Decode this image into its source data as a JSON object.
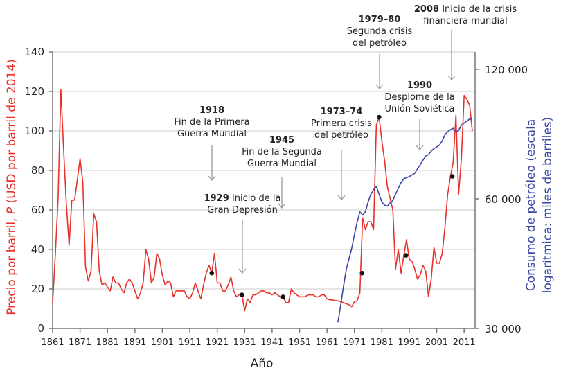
{
  "chart_data": {
    "type": "line",
    "title": "",
    "xlabel": "Año",
    "ylabel_left": "Precio por barril, P (USD por barril de 2014)",
    "ylabel_right": [
      "Consumo de petróleo (escala",
      "logarítmica: miles de barriles)"
    ],
    "x_ticks": [
      "1861",
      "1871",
      "1881",
      "1891",
      "1901",
      "1911",
      "1921",
      "1931",
      "1941",
      "1951",
      "1961",
      "1971",
      "1981",
      "1991",
      "2001",
      "2011"
    ],
    "xlim": [
      1861,
      2015
    ],
    "y_left_ticks": [
      "0",
      "20",
      "40",
      "60",
      "80",
      "100",
      "120",
      "140"
    ],
    "ylim_left": [
      0,
      140
    ],
    "y_right_ticks": [
      "30 000",
      "60 000",
      "120 000"
    ],
    "y_right_scale": "log",
    "ylim_right": [
      30000,
      120000
    ],
    "grid": "horizontal",
    "colors": {
      "price": "#e8302a",
      "consumption": "#3a46a6",
      "grid": "#dddddd",
      "arrow": "#999999",
      "marker": "#111111"
    },
    "series": [
      {
        "axis": "left",
        "x": [
          1861,
          1862,
          1863,
          1864,
          1865,
          1866,
          1867,
          1868,
          1869,
          1870,
          1871,
          1872,
          1873,
          1874,
          1875,
          1876,
          1877,
          1878,
          1879,
          1880,
          1881,
          1882,
          1883,
          1884,
          1885,
          1886,
          1887,
          1888,
          1889,
          1890,
          1891,
          1892,
          1893,
          1894,
          1895,
          1896,
          1897,
          1898,
          1899,
          1900,
          1901,
          1902,
          1903,
          1904,
          1905,
          1906,
          1907,
          1908,
          1909,
          1910,
          1911,
          1912,
          1913,
          1914,
          1915,
          1916,
          1917,
          1918,
          1919,
          1920,
          1921,
          1922,
          1923,
          1924,
          1925,
          1926,
          1927,
          1928,
          1929,
          1930,
          1931,
          1932,
          1933,
          1934,
          1935,
          1936,
          1937,
          1938,
          1939,
          1940,
          1941,
          1942,
          1943,
          1944,
          1945,
          1946,
          1947,
          1948,
          1949,
          1950,
          1951,
          1952,
          1953,
          1954,
          1955,
          1956,
          1957,
          1958,
          1959,
          1960,
          1961,
          1962,
          1963,
          1964,
          1965,
          1966,
          1967,
          1968,
          1969,
          1970,
          1971,
          1972,
          1973,
          1974,
          1975,
          1976,
          1977,
          1978,
          1979,
          1980,
          1981,
          1982,
          1983,
          1984,
          1985,
          1986,
          1987,
          1988,
          1989,
          1990,
          1991,
          1992,
          1993,
          1994,
          1995,
          1996,
          1997,
          1998,
          1999,
          2000,
          2001,
          2002,
          2003,
          2004,
          2005,
          2006,
          2007,
          2008,
          2009,
          2010,
          2011,
          2012,
          2013,
          2014
        ],
        "values": [
          13,
          38,
          66,
          121,
          91,
          63,
          42,
          65,
          65,
          75,
          86,
          74,
          31,
          24,
          29,
          58,
          54,
          29,
          22,
          23,
          21,
          19,
          26,
          23,
          23,
          20,
          18,
          23,
          25,
          23,
          19,
          15,
          18,
          23,
          40,
          35,
          23,
          26,
          38,
          35,
          27,
          22,
          24,
          23,
          16,
          19,
          19,
          19,
          19,
          16,
          15,
          18,
          23,
          19,
          15,
          22,
          28,
          32,
          28,
          38,
          23,
          23,
          19,
          19,
          22,
          26,
          19,
          16,
          17,
          17,
          9,
          15,
          13,
          17,
          17,
          18,
          19,
          19,
          18,
          18,
          17,
          18,
          17,
          16,
          16,
          13,
          13,
          20,
          18,
          17,
          16,
          16,
          16,
          17,
          17,
          17,
          16,
          16,
          17,
          17,
          15,
          14.5,
          14.5,
          14,
          14,
          13.5,
          13,
          12.5,
          12,
          11,
          13.5,
          14,
          18,
          56,
          50,
          54,
          54,
          50,
          103,
          107,
          95,
          85,
          72,
          66,
          60,
          30,
          40,
          28,
          37,
          45,
          35,
          34,
          30,
          25,
          27,
          32,
          29,
          16,
          25,
          41,
          33,
          33,
          38,
          51,
          68,
          77,
          84,
          108,
          68,
          86,
          118,
          116,
          113,
          100
        ]
      },
      {
        "axis": "right",
        "x": [
          1965,
          1966,
          1967,
          1968,
          1969,
          1970,
          1971,
          1972,
          1973,
          1974,
          1975,
          1976,
          1977,
          1978,
          1979,
          1980,
          1981,
          1982,
          1983,
          1984,
          1985,
          1986,
          1987,
          1988,
          1989,
          1990,
          1991,
          1992,
          1993,
          1994,
          1995,
          1996,
          1997,
          1998,
          1999,
          2000,
          2001,
          2002,
          2003,
          2004,
          2005,
          2006,
          2007,
          2008,
          2009,
          2010,
          2011,
          2012,
          2013,
          2014
        ],
        "values": [
          31000,
          34000,
          37500,
          41000,
          43500,
          46000,
          49500,
          53000,
          56000,
          55000,
          56000,
          59000,
          61500,
          63000,
          64100,
          61500,
          59000,
          58000,
          57700,
          58700,
          59500,
          61500,
          63500,
          65500,
          66800,
          67200,
          67600,
          68200,
          68800,
          70500,
          72000,
          73800,
          75500,
          76000,
          77500,
          78500,
          79200,
          80000,
          81800,
          84500,
          86000,
          86900,
          87500,
          85700,
          86500,
          89000,
          90000,
          91000,
          92000,
          92000
        ]
      }
    ],
    "markers": [
      {
        "year": 1919,
        "value": 28
      },
      {
        "year": 1930,
        "value": 17
      },
      {
        "year": 1945,
        "value": 16
      },
      {
        "year": 1973.8,
        "value": 28
      },
      {
        "year": 1980,
        "value": 107
      },
      {
        "year": 1989.8,
        "value": 37
      },
      {
        "year": 2006.7,
        "value": 77
      }
    ],
    "annotations": [
      {
        "bold": "1918",
        "lines": [
          "Fin de la Primera",
          "Guerra Mundial"
        ]
      },
      {
        "bold": "1945",
        "lines": [
          "Fin de la Segunda",
          "Guerra Mundial"
        ]
      },
      {
        "bold": "1929",
        "inline": " Inicio de la",
        "lines": [
          "Gran Depresión"
        ]
      },
      {
        "bold": "1973–74",
        "lines": [
          "Primera crisis",
          "del petróleo"
        ]
      },
      {
        "bold": "1979–80",
        "lines": [
          "Segunda crisis",
          "del petróleo"
        ]
      },
      {
        "bold": "1990",
        "lines": [
          "Desplome de la",
          "Unión Soviética"
        ]
      },
      {
        "bold": "2008",
        "inline": " Inicio de la crisis",
        "lines": [
          "financiera mundial"
        ]
      }
    ]
  }
}
